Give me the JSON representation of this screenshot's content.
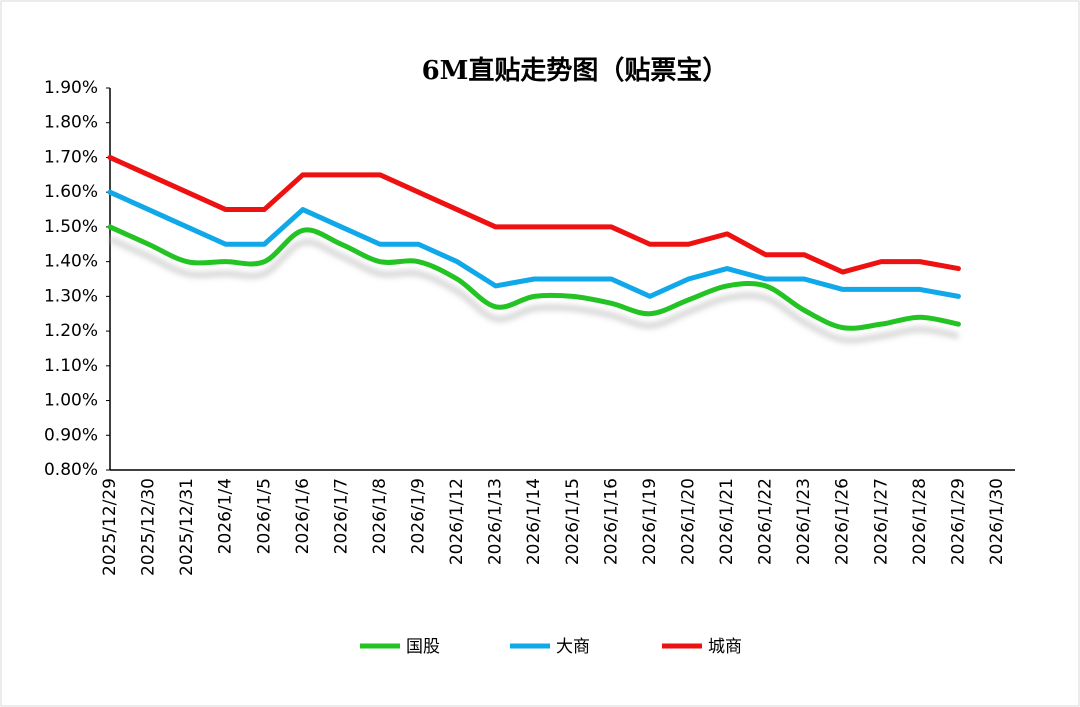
{
  "chart_data": {
    "type": "line",
    "title": "6M直贴走势图（贴票宝）",
    "categories": [
      "2025/12/29",
      "2025/12/30",
      "2025/12/31",
      "2026/1/4",
      "2026/1/5",
      "2026/1/6",
      "2026/1/7",
      "2026/1/8",
      "2026/1/9",
      "2026/1/12",
      "2026/1/13",
      "2026/1/14",
      "2026/1/15",
      "2026/1/16",
      "2026/1/19",
      "2026/1/20",
      "2026/1/21",
      "2026/1/22",
      "2026/1/23",
      "2026/1/26",
      "2026/1/27",
      "2026/1/28",
      "2026/1/29",
      "2026/1/30"
    ],
    "series": [
      {
        "name": "国股",
        "color": "#22c322",
        "smooth": true,
        "values": [
          1.5,
          1.45,
          1.4,
          1.4,
          1.4,
          1.49,
          1.45,
          1.4,
          1.4,
          1.35,
          1.27,
          1.3,
          1.3,
          1.28,
          1.25,
          1.29,
          1.33,
          1.33,
          1.26,
          1.21,
          1.22,
          1.24,
          1.22,
          null
        ]
      },
      {
        "name": "大商",
        "color": "#10a8e8",
        "smooth": false,
        "values": [
          1.6,
          1.55,
          1.5,
          1.45,
          1.45,
          1.55,
          1.5,
          1.45,
          1.45,
          1.4,
          1.33,
          1.35,
          1.35,
          1.35,
          1.3,
          1.35,
          1.38,
          1.35,
          1.35,
          1.32,
          1.32,
          1.32,
          1.3,
          null
        ]
      },
      {
        "name": "城商",
        "color": "#ee1111",
        "smooth": false,
        "values": [
          1.7,
          1.65,
          1.6,
          1.55,
          1.55,
          1.65,
          1.65,
          1.65,
          1.6,
          1.55,
          1.5,
          1.5,
          1.5,
          1.5,
          1.45,
          1.45,
          1.48,
          1.42,
          1.42,
          1.37,
          1.4,
          1.4,
          1.38,
          null
        ]
      }
    ],
    "ylim": [
      0.8,
      1.9
    ],
    "yticks": [
      {
        "value": 0.8,
        "label": "0.80%"
      },
      {
        "value": 0.9,
        "label": "0.90%"
      },
      {
        "value": 1.0,
        "label": "1.00%"
      },
      {
        "value": 1.1,
        "label": "1.10%"
      },
      {
        "value": 1.2,
        "label": "1.20%"
      },
      {
        "value": 1.3,
        "label": "1.30%"
      },
      {
        "value": 1.4,
        "label": "1.40%"
      },
      {
        "value": 1.5,
        "label": "1.50%"
      },
      {
        "value": 1.6,
        "label": "1.60%"
      },
      {
        "value": 1.7,
        "label": "1.70%"
      },
      {
        "value": 1.8,
        "label": "1.80%"
      },
      {
        "value": 1.9,
        "label": "1.90%"
      }
    ],
    "grid": false,
    "legend": "bottom"
  }
}
